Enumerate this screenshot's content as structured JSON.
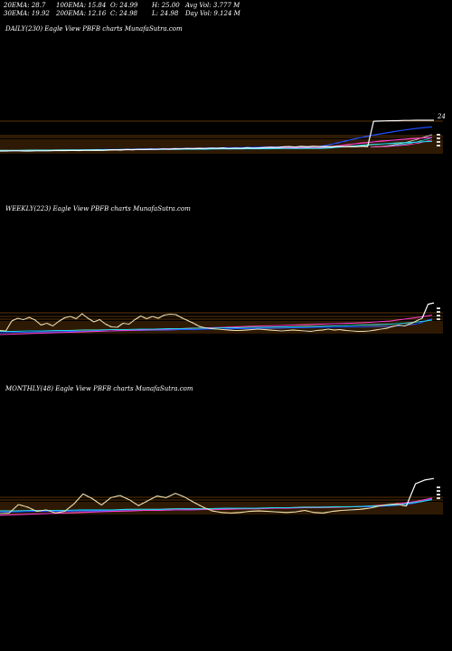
{
  "header": {
    "row1": [
      {
        "label": "20EMA: 28.7"
      },
      {
        "label": "100EMA: 15.84"
      },
      {
        "label": "O: 24.99"
      },
      {
        "label": "H: 25.00"
      },
      {
        "label": "Avg Vol: 3.777  M"
      }
    ],
    "row2": [
      {
        "label": "30EMA: 19.92"
      },
      {
        "label": "200EMA: 12.16"
      },
      {
        "label": "C: 24.98"
      },
      {
        "label": "L: 24.98"
      },
      {
        "label": "Day Vol: 9.124  M"
      }
    ]
  },
  "colors": {
    "background": "#000000",
    "price": "#ffffff",
    "grid": "#b8680f",
    "ema_blue": "#1f4fff",
    "ema_pink": "#ff3fd0",
    "ema_cyan": "#26d8e8",
    "ema_white_thin": "#dddddd",
    "price_tan": "#f0e2b0"
  },
  "chart_data": [
    {
      "type": "line",
      "title": "DAILY(230) Eagle   View  PBFB charts MunafaSutra.com",
      "price_label": "24",
      "price_series": [
        10.0,
        10.0,
        10.1,
        10.1,
        10.0,
        10.0,
        10.1,
        10.1,
        10.1,
        10.2,
        10.2,
        10.2,
        10.3,
        10.2,
        10.3,
        10.3,
        10.4,
        10.3,
        10.5,
        10.6,
        10.5,
        10.7,
        10.6,
        10.8,
        10.7,
        10.9,
        10.8,
        11.0,
        10.9,
        11.1,
        11.0,
        11.2,
        11.1,
        11.3,
        11.2,
        11.4,
        11.3,
        11.5,
        11.2,
        11.4,
        11.3,
        11.6,
        11.4,
        11.5,
        11.7,
        11.8,
        11.7,
        12.0,
        12.1,
        11.9,
        12.2,
        12.0,
        12.3,
        12.1,
        12.2,
        12.0,
        12.3,
        12.1,
        12.2,
        12.1,
        12.4,
        12.2,
        24.5,
        24.6,
        24.7,
        24.8,
        24.8,
        24.9,
        24.9,
        25.0,
        25.0,
        25.0,
        25.0
      ],
      "ema_series": [
        {
          "color": "blue",
          "values": [
            10.0,
            10.1,
            10.1,
            10.2,
            10.2,
            10.3,
            10.4,
            10.4,
            10.5,
            10.6,
            10.7,
            10.7,
            10.8,
            10.9,
            11.0,
            11.0,
            11.1,
            11.2,
            11.3,
            11.3,
            11.4,
            11.5,
            11.6,
            11.6,
            11.7,
            11.8,
            11.9,
            12.0,
            12.0,
            12.0,
            12.1,
            12.2,
            13.0,
            14.2,
            15.4,
            16.5,
            17.5,
            18.4,
            19.2,
            20.0,
            20.7,
            21.3,
            21.8
          ]
        },
        {
          "color": "pink",
          "values": [
            10.1,
            10.1,
            10.2,
            10.2,
            10.3,
            10.3,
            10.4,
            10.4,
            10.5,
            10.5,
            10.6,
            10.6,
            10.7,
            10.7,
            10.8,
            10.8,
            10.9,
            10.9,
            11.0,
            11.0,
            11.1,
            11.1,
            11.2,
            11.2,
            11.3,
            11.3,
            11.4,
            11.4,
            11.5,
            11.5,
            11.6,
            11.6,
            12.0,
            12.6,
            13.2,
            13.8,
            14.3,
            14.8,
            15.2,
            15.6,
            16.0,
            16.3,
            16.6
          ]
        },
        {
          "color": "cyan",
          "values": [
            10.3,
            10.3,
            10.3,
            10.4,
            10.4,
            10.4,
            10.5,
            10.5,
            10.5,
            10.6,
            10.6,
            10.6,
            10.7,
            10.7,
            10.7,
            10.8,
            10.8,
            10.8,
            10.9,
            10.9,
            10.9,
            11.0,
            11.0,
            11.0,
            11.1,
            11.1,
            11.1,
            11.2,
            11.2,
            11.2,
            11.3,
            11.3,
            11.5,
            11.9,
            12.3,
            12.7,
            13.1,
            13.4,
            13.7,
            14.0,
            14.2,
            14.5,
            14.7
          ]
        }
      ]
    },
    {
      "type": "line",
      "title": "WEEKLY(223) Eagle   View  PBFB charts MunafaSutra.com",
      "price_series": [
        11.5,
        11.4,
        13.6,
        14.2,
        13.9,
        14.4,
        13.8,
        12.7,
        13.1,
        12.5,
        13.5,
        14.3,
        14.6,
        14.1,
        15.2,
        14.2,
        13.4,
        13.9,
        12.9,
        12.3,
        12.2,
        13.1,
        12.9,
        13.9,
        14.7,
        14.1,
        14.6,
        14.2,
        14.9,
        15.1,
        15.0,
        14.3,
        13.7,
        13.1,
        12.4,
        12.1,
        11.9,
        11.8,
        11.7,
        11.6,
        11.5,
        11.5,
        11.6,
        11.7,
        11.8,
        11.7,
        11.6,
        11.5,
        11.4,
        11.5,
        11.6,
        11.5,
        11.4,
        11.3,
        11.5,
        11.6,
        11.8,
        11.6,
        11.7,
        11.5,
        11.4,
        11.3,
        11.3,
        11.4,
        11.6,
        11.8,
        12.0,
        12.4,
        12.7,
        12.5,
        13.0,
        13.6,
        14.2,
        17.3,
        17.6
      ],
      "ema_series": [
        {
          "color": "blue",
          "values": [
            11.0,
            11.1,
            11.1,
            11.2,
            11.2,
            11.3,
            11.3,
            11.4,
            11.4,
            11.5,
            11.5,
            11.6,
            11.6,
            11.7,
            11.7,
            11.8,
            11.8,
            11.9,
            11.9,
            12.0,
            12.0,
            12.1,
            12.1,
            12.2,
            12.2,
            12.3,
            12.3,
            12.4,
            12.4,
            12.6,
            13.0,
            14.1
          ]
        },
        {
          "color": "pink",
          "values": [
            10.6,
            10.7,
            10.8,
            10.9,
            11.0,
            11.1,
            11.2,
            11.3,
            11.4,
            11.5,
            11.6,
            11.7,
            11.8,
            11.9,
            12.0,
            12.1,
            12.2,
            12.3,
            12.4,
            12.5,
            12.6,
            12.7,
            12.8,
            12.9,
            13.0,
            13.1,
            13.2,
            13.4,
            13.6,
            14.0,
            14.4,
            14.9
          ]
        },
        {
          "color": "cyan",
          "values": [
            11.3,
            11.3,
            11.4,
            11.4,
            11.5,
            11.5,
            11.6,
            11.6,
            11.7,
            11.7,
            11.8,
            11.8,
            11.9,
            11.9,
            12.0,
            12.0,
            12.1,
            12.1,
            12.2,
            12.2,
            12.3,
            12.3,
            12.4,
            12.4,
            12.5,
            12.6,
            12.7,
            12.8,
            12.9,
            13.1,
            13.4,
            13.8
          ]
        }
      ]
    },
    {
      "type": "line",
      "title": "MONTHLY(48) Eagle   View  PBFB charts MunafaSutra.com",
      "price_series": [
        10.8,
        10.9,
        12.5,
        12.0,
        11.2,
        11.5,
        10.9,
        11.2,
        12.6,
        14.5,
        13.6,
        12.4,
        13.8,
        14.2,
        13.4,
        12.3,
        13.2,
        14.1,
        13.8,
        14.6,
        13.9,
        12.9,
        12.0,
        11.3,
        11.0,
        10.9,
        11.0,
        11.2,
        11.3,
        11.2,
        11.1,
        11.0,
        11.1,
        11.4,
        11.0,
        10.9,
        11.2,
        11.4,
        11.5,
        11.6,
        11.8,
        12.2,
        12.5,
        12.6,
        12.2,
        16.4,
        17.1,
        17.4
      ],
      "ema_series": [
        {
          "color": "blue",
          "values": [
            11.1,
            11.1,
            11.2,
            11.2,
            11.2,
            11.3,
            11.3,
            11.3,
            11.4,
            11.4,
            11.5,
            11.5,
            11.6,
            11.6,
            11.7,
            11.7,
            11.8,
            11.8,
            11.9,
            11.9,
            12.0,
            12.0,
            12.1,
            12.1,
            12.2,
            12.4,
            12.8,
            13.6
          ]
        },
        {
          "color": "pink",
          "values": [
            10.5,
            10.6,
            10.7,
            10.8,
            10.9,
            11.0,
            11.1,
            11.2,
            11.3,
            11.4,
            11.4,
            11.5,
            11.5,
            11.6,
            11.6,
            11.7,
            11.7,
            11.8,
            11.8,
            11.9,
            11.9,
            12.0,
            12.1,
            12.2,
            12.4,
            12.7,
            13.1,
            13.7
          ]
        },
        {
          "color": "cyan",
          "values": [
            11.3,
            11.3,
            11.4,
            11.4,
            11.4,
            11.5,
            11.5,
            11.5,
            11.6,
            11.6,
            11.6,
            11.7,
            11.7,
            11.7,
            11.8,
            11.8,
            11.8,
            11.9,
            11.9,
            12.0,
            12.0,
            12.1,
            12.1,
            12.2,
            12.3,
            12.5,
            12.9,
            13.4
          ]
        }
      ]
    }
  ]
}
